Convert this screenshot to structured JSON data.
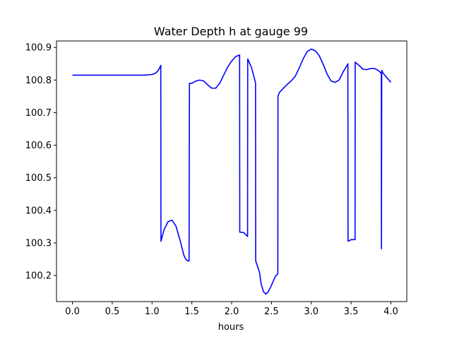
{
  "chart_data": {
    "type": "line",
    "title": "Water Depth h at gauge 99",
    "xlabel": "hours",
    "ylabel": "",
    "xlim": [
      -0.2,
      4.2
    ],
    "ylim": [
      100.12,
      100.92
    ],
    "xticks": [
      0.0,
      0.5,
      1.0,
      1.5,
      2.0,
      2.5,
      3.0,
      3.5,
      4.0
    ],
    "xtick_labels": [
      "0.0",
      "0.5",
      "1.0",
      "1.5",
      "2.0",
      "2.5",
      "3.0",
      "3.5",
      "4.0"
    ],
    "yticks": [
      100.2,
      100.3,
      100.4,
      100.5,
      100.6,
      100.7,
      100.8,
      100.9
    ],
    "ytick_labels": [
      "100.2",
      "100.3",
      "100.4",
      "100.5",
      "100.6",
      "100.7",
      "100.8",
      "100.9"
    ],
    "grid": false,
    "series": [
      {
        "color": "#0000ff",
        "x": [
          0.0,
          0.5,
          0.9,
          1.0,
          1.05,
          1.08,
          1.11,
          1.112,
          1.15,
          1.2,
          1.25,
          1.3,
          1.35,
          1.4,
          1.43,
          1.46,
          1.465,
          1.47,
          1.5,
          1.55,
          1.6,
          1.65,
          1.7,
          1.75,
          1.8,
          1.85,
          1.9,
          1.95,
          2.0,
          2.05,
          2.1,
          2.102,
          2.15,
          2.2,
          2.202,
          2.25,
          2.3,
          2.302,
          2.33,
          2.35,
          2.37,
          2.4,
          2.43,
          2.46,
          2.5,
          2.55,
          2.58,
          2.582,
          2.6,
          2.65,
          2.7,
          2.75,
          2.8,
          2.85,
          2.9,
          2.95,
          3.0,
          3.05,
          3.1,
          3.15,
          3.2,
          3.25,
          3.3,
          3.35,
          3.4,
          3.45,
          3.46,
          3.462,
          3.5,
          3.55,
          3.552,
          3.6,
          3.65,
          3.7,
          3.75,
          3.8,
          3.85,
          3.88,
          3.882,
          3.885,
          3.9,
          3.95,
          4.0
        ],
        "y": [
          100.815,
          100.815,
          100.815,
          100.817,
          100.822,
          100.83,
          100.845,
          100.305,
          100.34,
          100.365,
          100.37,
          100.352,
          100.31,
          100.262,
          100.248,
          100.244,
          100.245,
          100.79,
          100.79,
          100.797,
          100.8,
          100.797,
          100.785,
          100.775,
          100.775,
          100.79,
          100.815,
          100.84,
          100.858,
          100.872,
          100.877,
          100.333,
          100.332,
          100.32,
          100.865,
          100.838,
          100.792,
          100.245,
          100.225,
          100.21,
          100.175,
          100.15,
          100.143,
          100.15,
          100.17,
          100.198,
          100.205,
          100.75,
          100.762,
          100.775,
          100.787,
          100.798,
          100.812,
          100.838,
          100.866,
          100.888,
          100.895,
          100.89,
          100.875,
          100.848,
          100.818,
          100.797,
          100.793,
          100.8,
          100.825,
          100.845,
          100.85,
          100.305,
          100.31,
          100.31,
          100.855,
          100.845,
          100.833,
          100.832,
          100.836,
          100.835,
          100.828,
          100.82,
          100.282,
          100.83,
          100.822,
          100.807,
          100.793
        ]
      }
    ]
  }
}
